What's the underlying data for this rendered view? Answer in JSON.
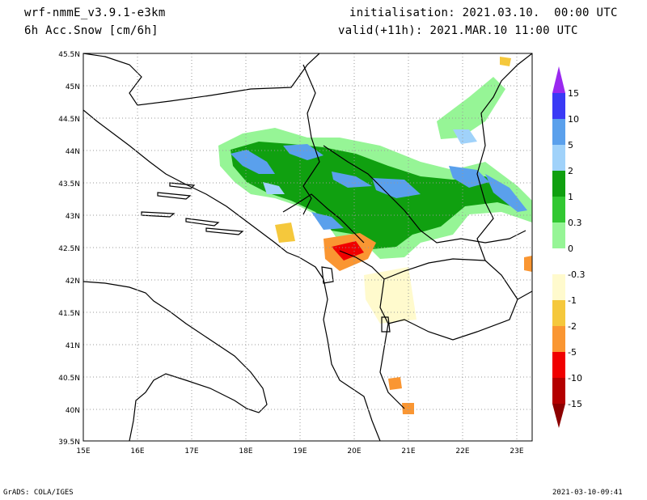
{
  "header": {
    "model": "wrf-nmmE_v3.9.1-e3km",
    "field": "6h Acc.Snow [cm/6h]",
    "init": "initialisation: 2021.03.10.  00:00 UTC",
    "valid": "valid(+11h): 2021.MAR.10 11:00 UTC"
  },
  "footer": {
    "left": "GrADS: COLA/IGES",
    "right": "2021-03-10-09:41"
  },
  "map": {
    "lon_labels": [
      "15E",
      "16E",
      "17E",
      "18E",
      "19E",
      "20E",
      "21E",
      "22E",
      "23E"
    ],
    "lat_labels": [
      "45.5N",
      "45N",
      "44.5N",
      "44N",
      "43.5N",
      "43N",
      "42.5N",
      "42N",
      "41.5N",
      "41N",
      "40.5N",
      "40N",
      "39.5N"
    ],
    "lon_range": [
      15,
      23.3
    ],
    "lat_range": [
      39.5,
      45.5
    ],
    "grid": "dotted"
  },
  "colorbar": {
    "labels": [
      "15",
      "10",
      "5",
      "2",
      "1",
      "0.3",
      "0",
      "-0.3",
      "-1",
      "-2",
      "-5",
      "-10",
      "-15"
    ],
    "colors": [
      "#9a28f0",
      "#3a3af5",
      "#5aa0ec",
      "#a0d2fa",
      "#10a010",
      "#32c832",
      "#96f596",
      "#ffffff",
      "#fffacd",
      "#f5c83c",
      "#fa9632",
      "#f00000",
      "#b40000",
      "#8c0000"
    ]
  }
}
